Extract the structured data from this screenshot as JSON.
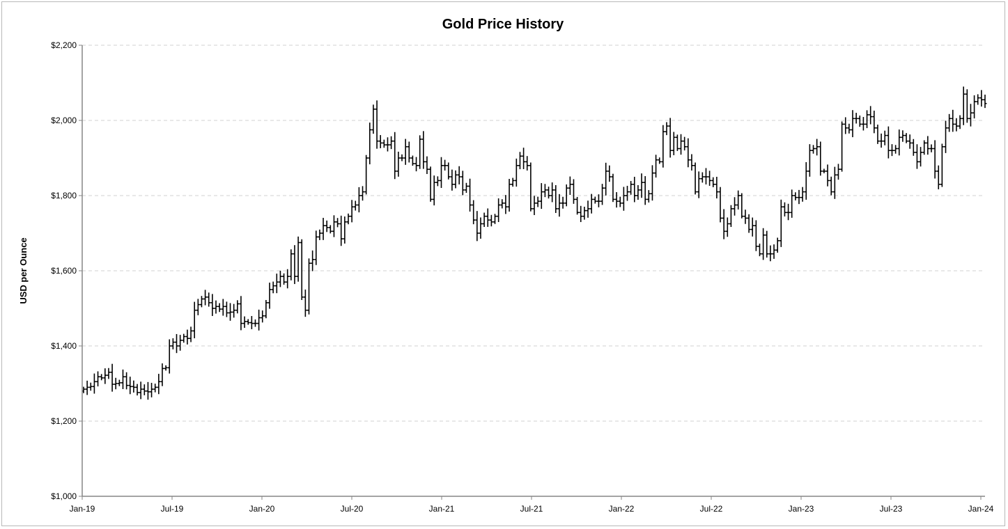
{
  "chart_data": {
    "type": "ohlc-bar",
    "title": "Gold Price History",
    "xlabel": "",
    "ylabel": "USD per Ounce",
    "ylim": [
      1000,
      2200
    ],
    "yticks": [
      1000,
      1200,
      1400,
      1600,
      1800,
      2000,
      2200
    ],
    "ytick_labels": [
      "$1,000",
      "$1,200",
      "$1,400",
      "$1,600",
      "$1,800",
      "$2,000",
      "$2,200"
    ],
    "xtick_labels": [
      "Jan-19",
      "Jul-19",
      "Jan-20",
      "Jul-20",
      "Jan-21",
      "Jul-21",
      "Jan-22",
      "Jul-22",
      "Jan-23",
      "Jul-23",
      "Jan-24"
    ],
    "grid": "horizontal-dashed",
    "frequency": "weekly",
    "note": "weekly closes; open = previous close, high/low extend slightly beyond open/close",
    "weekly_close": [
      1285,
      1290,
      1292,
      1305,
      1318,
      1315,
      1322,
      1330,
      1298,
      1300,
      1302,
      1318,
      1295,
      1292,
      1290,
      1276,
      1285,
      1280,
      1278,
      1285,
      1290,
      1305,
      1340,
      1342,
      1400,
      1410,
      1400,
      1415,
      1425,
      1420,
      1440,
      1495,
      1510,
      1525,
      1530,
      1515,
      1500,
      1505,
      1498,
      1505,
      1488,
      1490,
      1495,
      1512,
      1460,
      1465,
      1462,
      1460,
      1460,
      1475,
      1480,
      1515,
      1550,
      1560,
      1570,
      1585,
      1570,
      1585,
      1645,
      1585,
      1675,
      1530,
      1495,
      1620,
      1630,
      1690,
      1700,
      1720,
      1715,
      1705,
      1730,
      1725,
      1685,
      1730,
      1745,
      1770,
      1775,
      1800,
      1810,
      1900,
      1975,
      2030,
      1945,
      1940,
      1935,
      1935,
      1945,
      1865,
      1900,
      1900,
      1930,
      1900,
      1885,
      1880,
      1950,
      1890,
      1870,
      1790,
      1835,
      1840,
      1880,
      1880,
      1850,
      1830,
      1855,
      1850,
      1815,
      1825,
      1775,
      1735,
      1700,
      1725,
      1745,
      1735,
      1730,
      1745,
      1775,
      1780,
      1770,
      1830,
      1840,
      1880,
      1905,
      1890,
      1880,
      1765,
      1780,
      1785,
      1810,
      1815,
      1800,
      1815,
      1765,
      1780,
      1780,
      1820,
      1830,
      1790,
      1755,
      1745,
      1760,
      1765,
      1790,
      1785,
      1785,
      1820,
      1865,
      1850,
      1790,
      1785,
      1780,
      1800,
      1810,
      1830,
      1800,
      1815,
      1835,
      1790,
      1805,
      1860,
      1895,
      1890,
      1970,
      1985,
      1920,
      1955,
      1925,
      1945,
      1930,
      1895,
      1880,
      1810,
      1845,
      1850,
      1850,
      1840,
      1830,
      1810,
      1740,
      1705,
      1725,
      1765,
      1775,
      1800,
      1745,
      1740,
      1710,
      1720,
      1665,
      1645,
      1695,
      1645,
      1645,
      1655,
      1680,
      1770,
      1755,
      1755,
      1800,
      1795,
      1795,
      1810,
      1865,
      1920,
      1925,
      1930,
      1865,
      1865,
      1840,
      1810,
      1855,
      1870,
      1990,
      1980,
      1975,
      2005,
      2005,
      1990,
      1990,
      2015,
      2010,
      1980,
      1945,
      1945,
      1960,
      1920,
      1920,
      1925,
      1955,
      1960,
      1945,
      1940,
      1915,
      1890,
      1915,
      1940,
      1925,
      1925,
      1865,
      1830,
      1930,
      1980,
      2005,
      1990,
      1985,
      2005,
      2070,
      2005,
      2020,
      2050,
      2060,
      2055,
      2045
    ],
    "colors": {
      "bar": "#000000",
      "grid": "#d0d0d0",
      "axis": "#868686"
    }
  }
}
